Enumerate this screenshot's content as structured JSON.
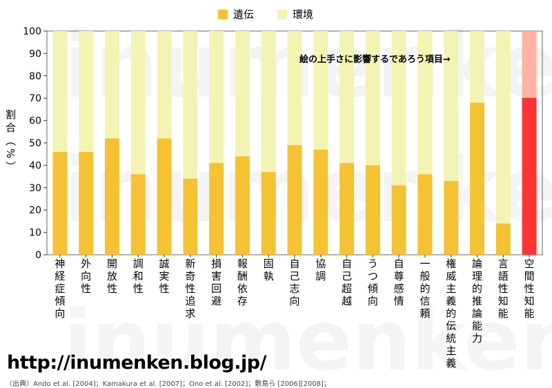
{
  "chart_data": {
    "type": "bar",
    "stacked": true,
    "categories": [
      "神経症傾向",
      "外向性",
      "開放性",
      "調和性",
      "誠実性",
      "新奇性追求",
      "損害回避",
      "報酬依存",
      "固執",
      "自己志向",
      "協調",
      "自己超越",
      "うつ傾向",
      "自尊感情",
      "一般的信頼",
      "権威主義的伝統主義",
      "論理的推論能力",
      "言語性知能",
      "空間性知能"
    ],
    "series": [
      {
        "name": "遺伝",
        "values": [
          46,
          46,
          52,
          36,
          52,
          34,
          41,
          44,
          37,
          49,
          47,
          41,
          40,
          31,
          36,
          33,
          68,
          14,
          70
        ]
      },
      {
        "name": "環境",
        "values": [
          54,
          54,
          48,
          64,
          48,
          66,
          59,
          56,
          63,
          51,
          53,
          59,
          60,
          69,
          64,
          67,
          32,
          86,
          30
        ]
      }
    ],
    "ylabel": "割合（%）",
    "ylim": [
      0,
      100
    ],
    "yticks": [
      0,
      10,
      20,
      30,
      40,
      50,
      60,
      70,
      80,
      90,
      100
    ],
    "annotation": "絵の上手さに影響するであろう項目→",
    "highlight_category": "空間性知能"
  },
  "legend": [
    {
      "label": "遺伝",
      "color": "#f5c233"
    },
    {
      "label": "環境",
      "color": "#f3f4b3"
    }
  ],
  "colors": {
    "heredity": "#f5c233",
    "environment": "#f3f4b3",
    "highlight_heredity": "#ff3333",
    "highlight_environment": "#ffb3a3"
  },
  "watermark": "inumenken",
  "url": "http://inumenken.blog.jp/",
  "source": "（出典）Ando et al. [2004]；Kamakura et al. [2007]；Ono et al. [2002]；敷島ら [2006][2008]；"
}
